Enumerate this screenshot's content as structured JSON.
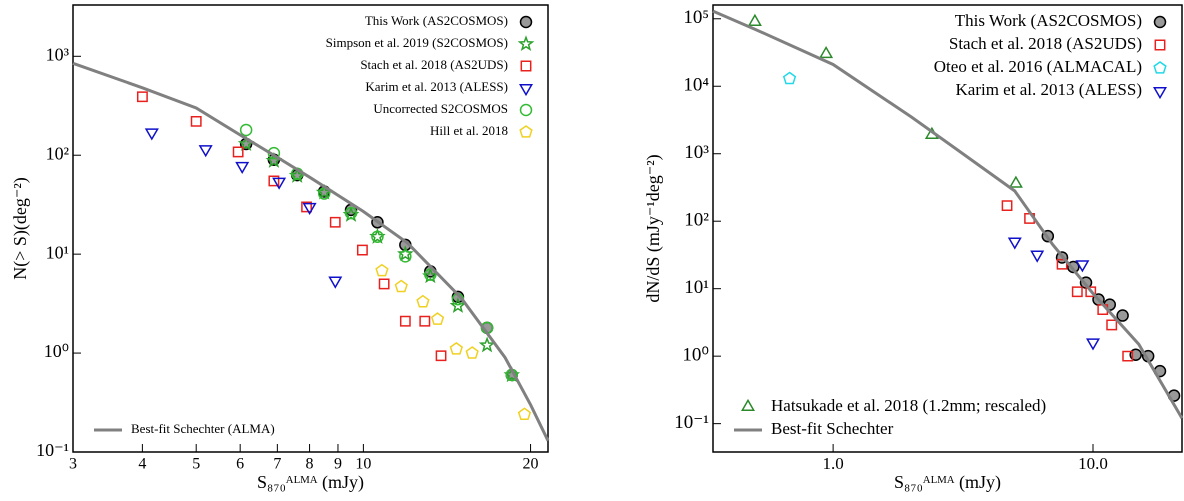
{
  "chart_data": [
    {
      "type": "scatter",
      "log_x": true,
      "log_y": true,
      "x_label": "S₈₇₀ᴬᴸᴹᴬ (mJy)",
      "y_label": "N(> S)(deg⁻²)",
      "xlim": [
        3,
        21.5
      ],
      "ylim": [
        0.1,
        3300
      ],
      "xticks": [
        3,
        4,
        5,
        6,
        7,
        8,
        9,
        10,
        20
      ],
      "yticks": [
        {
          "value": 0.1,
          "label": "10⁻¹"
        },
        {
          "value": 1,
          "label": "10⁰"
        },
        {
          "value": 10,
          "label": "10¹"
        },
        {
          "value": 100,
          "label": "10²"
        },
        {
          "value": 1000,
          "label": "10³"
        }
      ],
      "series": [
        {
          "name": "This Work (AS2COSMOS)",
          "marker": "circle",
          "color": "#000000",
          "fill": "#999999",
          "legend": "upper right",
          "x": [
            6.15,
            6.9,
            7.6,
            8.5,
            9.5,
            10.6,
            11.9,
            13.2,
            14.8,
            16.7,
            18.5
          ],
          "values": [
            130,
            90,
            63,
            43,
            28,
            21,
            12.4,
            6.7,
            3.7,
            1.8,
            0.6
          ]
        },
        {
          "name": "Simpson et al. 2019 (S2COSMOS)",
          "marker": "star",
          "color": "#2ca02c",
          "legend": "upper right",
          "x": [
            6.15,
            6.9,
            7.6,
            8.5,
            9.5,
            10.6,
            11.9,
            13.2,
            14.8,
            16.7,
            18.5
          ],
          "values": [
            130,
            88,
            62,
            42,
            25,
            15,
            10,
            6,
            3,
            1.2,
            0.6
          ]
        },
        {
          "name": "Stach et al. 2018 (AS2UDS)",
          "marker": "square",
          "color": "#e8211e",
          "legend": "upper right",
          "x": [
            4.0,
            5.0,
            5.95,
            6.9,
            7.9,
            8.9,
            9.96,
            10.9,
            11.9,
            12.9,
            13.8
          ],
          "values": [
            390,
            220,
            108,
            55,
            30,
            21,
            11,
            5.0,
            2.1,
            2.1,
            0.94
          ]
        },
        {
          "name": "Karim et al. 2013 (ALESS)",
          "marker": "triangle-down",
          "color": "#1010cc",
          "legend": "upper right",
          "x": [
            4.16,
            5.2,
            6.05,
            7.05,
            8.0,
            8.9
          ],
          "values": [
            170,
            115,
            78,
            54,
            30,
            5.4
          ]
        },
        {
          "name": "Uncorrected S2COSMOS",
          "marker": "circle",
          "color": "#33bb33",
          "legend": "upper right",
          "x": [
            6.15,
            6.9,
            7.6,
            8.5,
            9.5,
            10.6,
            11.9,
            13.2,
            14.8,
            16.7,
            18.5
          ],
          "values": [
            180,
            105,
            65,
            41,
            26,
            15,
            9.5,
            6.2,
            3.5,
            1.8,
            0.6
          ]
        },
        {
          "name": "Hill et al. 2018",
          "marker": "pentagon",
          "color": "#f0d020",
          "legend": "upper right",
          "x": [
            10.8,
            11.7,
            12.8,
            13.6,
            14.7,
            15.7,
            19.5
          ],
          "values": [
            6.8,
            4.7,
            3.3,
            2.2,
            1.1,
            1.0,
            0.24
          ]
        },
        {
          "name": "Best-fit Schechter (ALMA)",
          "marker": "line",
          "color": "#808080",
          "legend": "lower left",
          "x": [
            3,
            4,
            5,
            6,
            7,
            8,
            10,
            12,
            15,
            18,
            20,
            21.5
          ],
          "values": [
            850,
            480,
            300,
            160,
            95,
            60,
            27,
            13,
            3.6,
            0.9,
            0.3,
            0.13
          ]
        }
      ]
    },
    {
      "type": "scatter",
      "log_x": true,
      "log_y": true,
      "x_label": "S₈₇₀ᴬᴸᴹᴬ (mJy)",
      "y_label": "dN/dS (mJy⁻¹deg⁻²)",
      "xlim": [
        0.345,
        22
      ],
      "ylim": [
        0.038,
        160000
      ],
      "xticks": [
        {
          "value": 1,
          "label": "1.0"
        },
        {
          "value": 10,
          "label": "10.0"
        }
      ],
      "yticks": [
        {
          "value": 0.1,
          "label": "10⁻¹"
        },
        {
          "value": 1,
          "label": "10⁰"
        },
        {
          "value": 10,
          "label": "10¹"
        },
        {
          "value": 100,
          "label": "10²"
        },
        {
          "value": 1000,
          "label": "10³"
        },
        {
          "value": 10000,
          "label": "10⁴"
        },
        {
          "value": 100000,
          "label": "10⁵"
        }
      ],
      "series": [
        {
          "name": "This Work (AS2COSMOS)",
          "marker": "circle",
          "color": "#000000",
          "fill": "#999999",
          "legend": "upper right",
          "x": [
            6.7,
            7.6,
            8.4,
            9.4,
            10.5,
            11.6,
            13.0,
            14.6,
            16.3,
            18.1,
            20.5
          ],
          "values": [
            60,
            29,
            21,
            12.3,
            6.9,
            5.8,
            4,
            1.05,
            1.0,
            0.6,
            0.26
          ]
        },
        {
          "name": "Stach et al. 2018 (AS2UDS)",
          "marker": "square",
          "color": "#e8211e",
          "legend": "upper right",
          "x": [
            4.67,
            5.7,
            7.6,
            8.7,
            9.8,
            10.9,
            11.8,
            13.6
          ],
          "values": [
            170,
            110,
            23,
            9.0,
            9.0,
            4.9,
            2.9,
            1.0
          ]
        },
        {
          "name": "Oteo et al. 2016 (ALMACAL)",
          "marker": "pentagon",
          "color": "#20d8e8",
          "legend": "upper right",
          "x": [
            0.68
          ],
          "values": [
            13000
          ]
        },
        {
          "name": "Karim et al. 2013 (ALESS)",
          "marker": "triangle-down",
          "color": "#1010cc",
          "legend": "upper right",
          "x": [
            5.0,
            6.1,
            9.1,
            10.0
          ],
          "values": [
            50,
            32,
            23,
            1.6
          ]
        },
        {
          "name": "Hatsukade et al. 2018 (1.2mm; rescaled)",
          "marker": "triangle-up",
          "color": "#2a8a2a",
          "legend": "lower left",
          "x": [
            0.5,
            0.94,
            2.4,
            5.05
          ],
          "values": [
            90000,
            30000,
            1900,
            360
          ]
        },
        {
          "name": "Best-fit Schechter",
          "marker": "line",
          "color": "#808080",
          "legend": "lower left",
          "x": [
            0.345,
            0.5,
            1,
            2,
            3,
            5,
            7,
            10,
            15,
            22
          ],
          "values": [
            130000,
            70000,
            21000,
            3500,
            1150,
            280,
            45,
            8.5,
            1.5,
            0.12
          ]
        }
      ]
    }
  ]
}
